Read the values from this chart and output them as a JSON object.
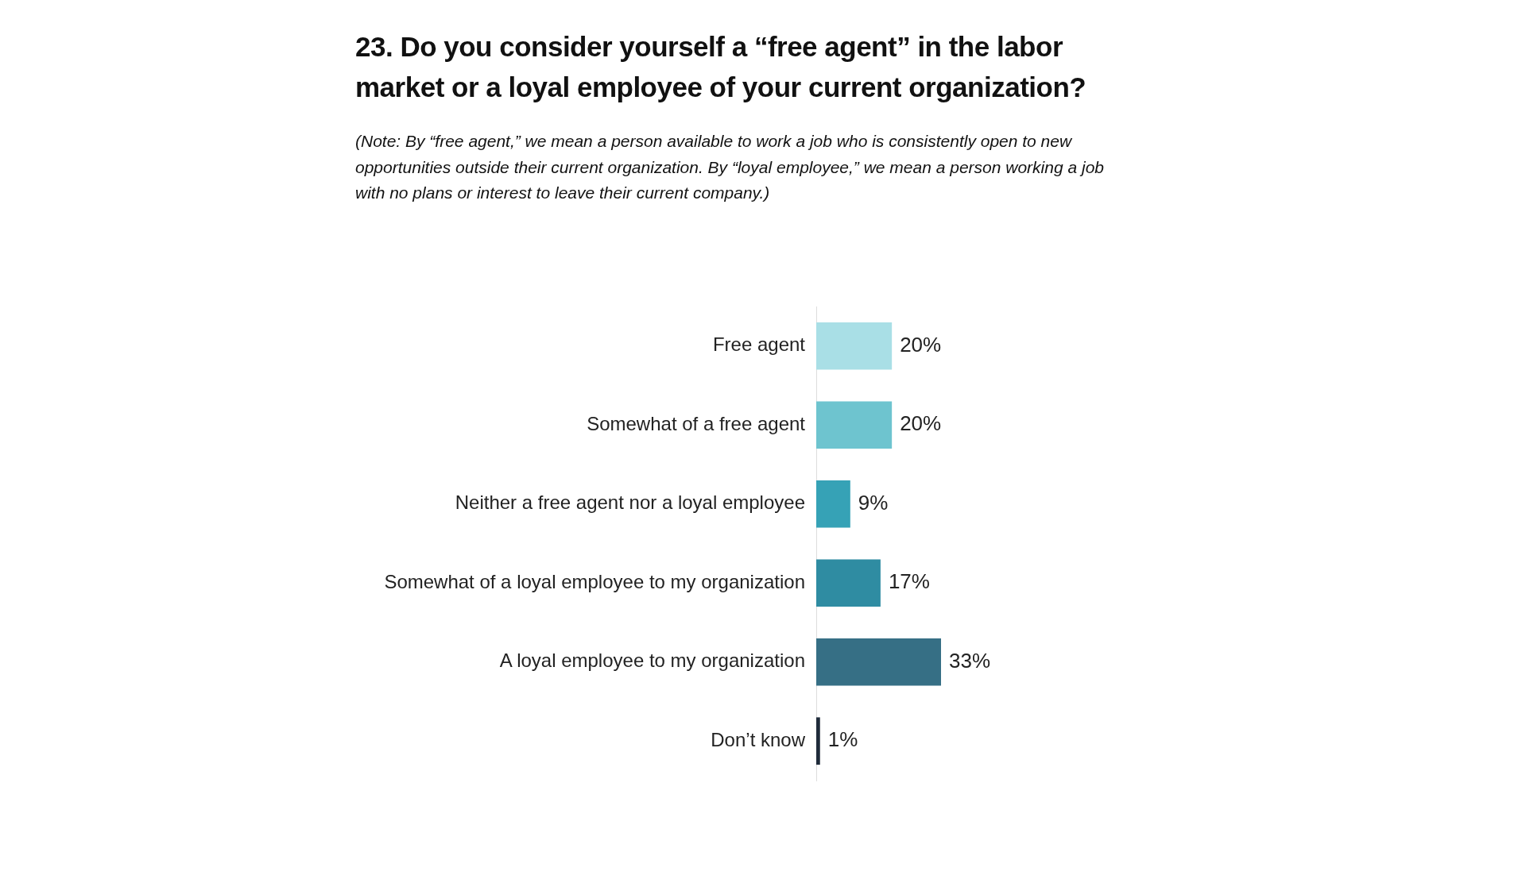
{
  "chart_data": {
    "type": "bar",
    "orientation": "horizontal",
    "title": "23. Do you consider yourself a “free agent” in the labor market or a loyal employee of your current organization?",
    "subtitle": "(Note: By “free agent,” we mean a person available to work a job who is consistently open to new opportunities outside their current organization. By “loyal employee,” we mean a person working a job with no plans or interest to leave their current company.)",
    "categories": [
      "Free agent",
      "Somewhat of a free agent",
      "Neither a free agent nor a loyal employee",
      "Somewhat of a loyal employee to my organization",
      "A loyal employee to my organization",
      "Don’t know"
    ],
    "values": [
      20,
      20,
      9,
      17,
      33,
      1
    ],
    "colors": [
      "#a9dfe6",
      "#6ec4cf",
      "#36a2b6",
      "#2f8ca2",
      "#366f85",
      "#1f2b3a"
    ],
    "value_labels": [
      "20%",
      "20%",
      "9%",
      "17%",
      "33%",
      "1%"
    ],
    "legend": false
  }
}
